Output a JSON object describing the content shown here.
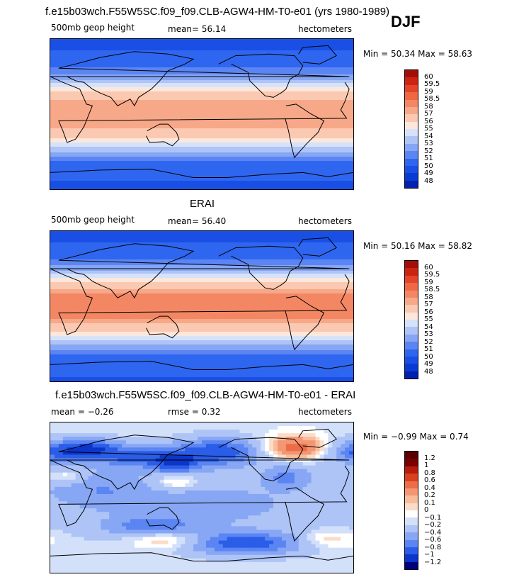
{
  "header": {
    "title": "f.e15b03wch.F55W5SC.f09_f09.CLB-AGW4-HM-T0-e01 (yrs 1980-1989)",
    "season": "DJF"
  },
  "colors": {
    "scale_full": [
      "#00007f",
      "#0020b0",
      "#0a3ad4",
      "#1a4fe6",
      "#2f66f0",
      "#5b85f3",
      "#86a6f5",
      "#aec4f7",
      "#d6e2fa",
      "#fbe7dc",
      "#fbc9b1",
      "#f7a888",
      "#f48763",
      "#ef6843",
      "#e3442a",
      "#cc2412",
      "#a30f06",
      "#7a0000"
    ],
    "scale_diff": [
      "#00007f",
      "#0d35c9",
      "#2a5de8",
      "#5b85f3",
      "#87a7f5",
      "#aec4f7",
      "#d3e0fa",
      "#ffffff",
      "#fbdcc7",
      "#f8bc9b",
      "#f39673",
      "#ec6d48",
      "#d9401f",
      "#b71b0a",
      "#7a0000"
    ]
  },
  "panels": [
    {
      "top_title": "",
      "field": "500mb geop height",
      "stat1": "mean=  56.14",
      "stat2": "",
      "units": "hectometers",
      "minmax": "Min =  50.34 Max =  58.63",
      "colorbar_ticks": [
        "60",
        "59.5",
        "59",
        "58.5",
        "58",
        "57",
        "56",
        "55",
        "54",
        "53",
        "52",
        "51",
        "50",
        "49",
        "48"
      ],
      "chart_data": {
        "type": "heatmap",
        "variable": "500mb geop height",
        "units": "hectometers",
        "mean": 56.14,
        "min": 50.34,
        "max": 58.63,
        "levels": [
          48,
          49,
          50,
          51,
          52,
          53,
          54,
          55,
          56,
          57,
          58,
          58.5,
          59,
          59.5,
          60
        ],
        "lat_profile": {
          "lat": [
            90,
            60,
            45,
            30,
            15,
            0,
            -15,
            -30,
            -45,
            -60,
            -90
          ],
          "value": [
            50.6,
            51.5,
            53.2,
            56.6,
            58.3,
            58.5,
            58.2,
            56.9,
            54.0,
            51.4,
            50.8
          ]
        }
      }
    },
    {
      "top_title": "ERAI",
      "field": "500mb geop height",
      "stat1": "mean=  56.40",
      "stat2": "",
      "units": "hectometers",
      "minmax": "Min =  50.16 Max =  58.82",
      "colorbar_ticks": [
        "60",
        "59.5",
        "59",
        "58.5",
        "58",
        "57",
        "56",
        "55",
        "54",
        "53",
        "52",
        "51",
        "50",
        "49",
        "48"
      ],
      "chart_data": {
        "type": "heatmap",
        "variable": "500mb geop height",
        "units": "hectometers",
        "mean": 56.4,
        "min": 50.16,
        "max": 58.82,
        "levels": [
          48,
          49,
          50,
          51,
          52,
          53,
          54,
          55,
          56,
          57,
          58,
          58.5,
          59,
          59.5,
          60
        ],
        "lat_profile": {
          "lat": [
            90,
            60,
            45,
            30,
            15,
            0,
            -15,
            -30,
            -45,
            -60,
            -90
          ],
          "value": [
            50.5,
            51.6,
            53.5,
            56.9,
            58.6,
            58.8,
            58.5,
            57.2,
            54.3,
            51.6,
            50.9
          ]
        }
      }
    },
    {
      "top_title": "f.e15b03wch.F55W5SC.f09_f09.CLB-AGW4-HM-T0-e01 - ERAI",
      "field": "mean =  −0.26",
      "stat1": "rmse =   0.32",
      "stat2": "",
      "units": "hectometers",
      "minmax": "Min =  −0.99 Max =   0.74",
      "colorbar_ticks": [
        "1.2",
        "1",
        "0.8",
        "0.6",
        "0.4",
        "0.2",
        "0.1",
        "0",
        "−0.1",
        "−0.2",
        "−0.4",
        "−0.6",
        "−0.8",
        "−1",
        "−1.2"
      ],
      "chart_data": {
        "type": "heatmap",
        "variable": "500mb geop height difference",
        "units": "hectometers",
        "mean": -0.26,
        "rmse": 0.32,
        "min": -0.99,
        "max": 0.74,
        "levels": [
          -1.2,
          -1,
          -0.8,
          -0.6,
          -0.4,
          -0.2,
          -0.1,
          0,
          0.1,
          0.2,
          0.4,
          0.6,
          0.8,
          1,
          1.2
        ]
      }
    }
  ]
}
